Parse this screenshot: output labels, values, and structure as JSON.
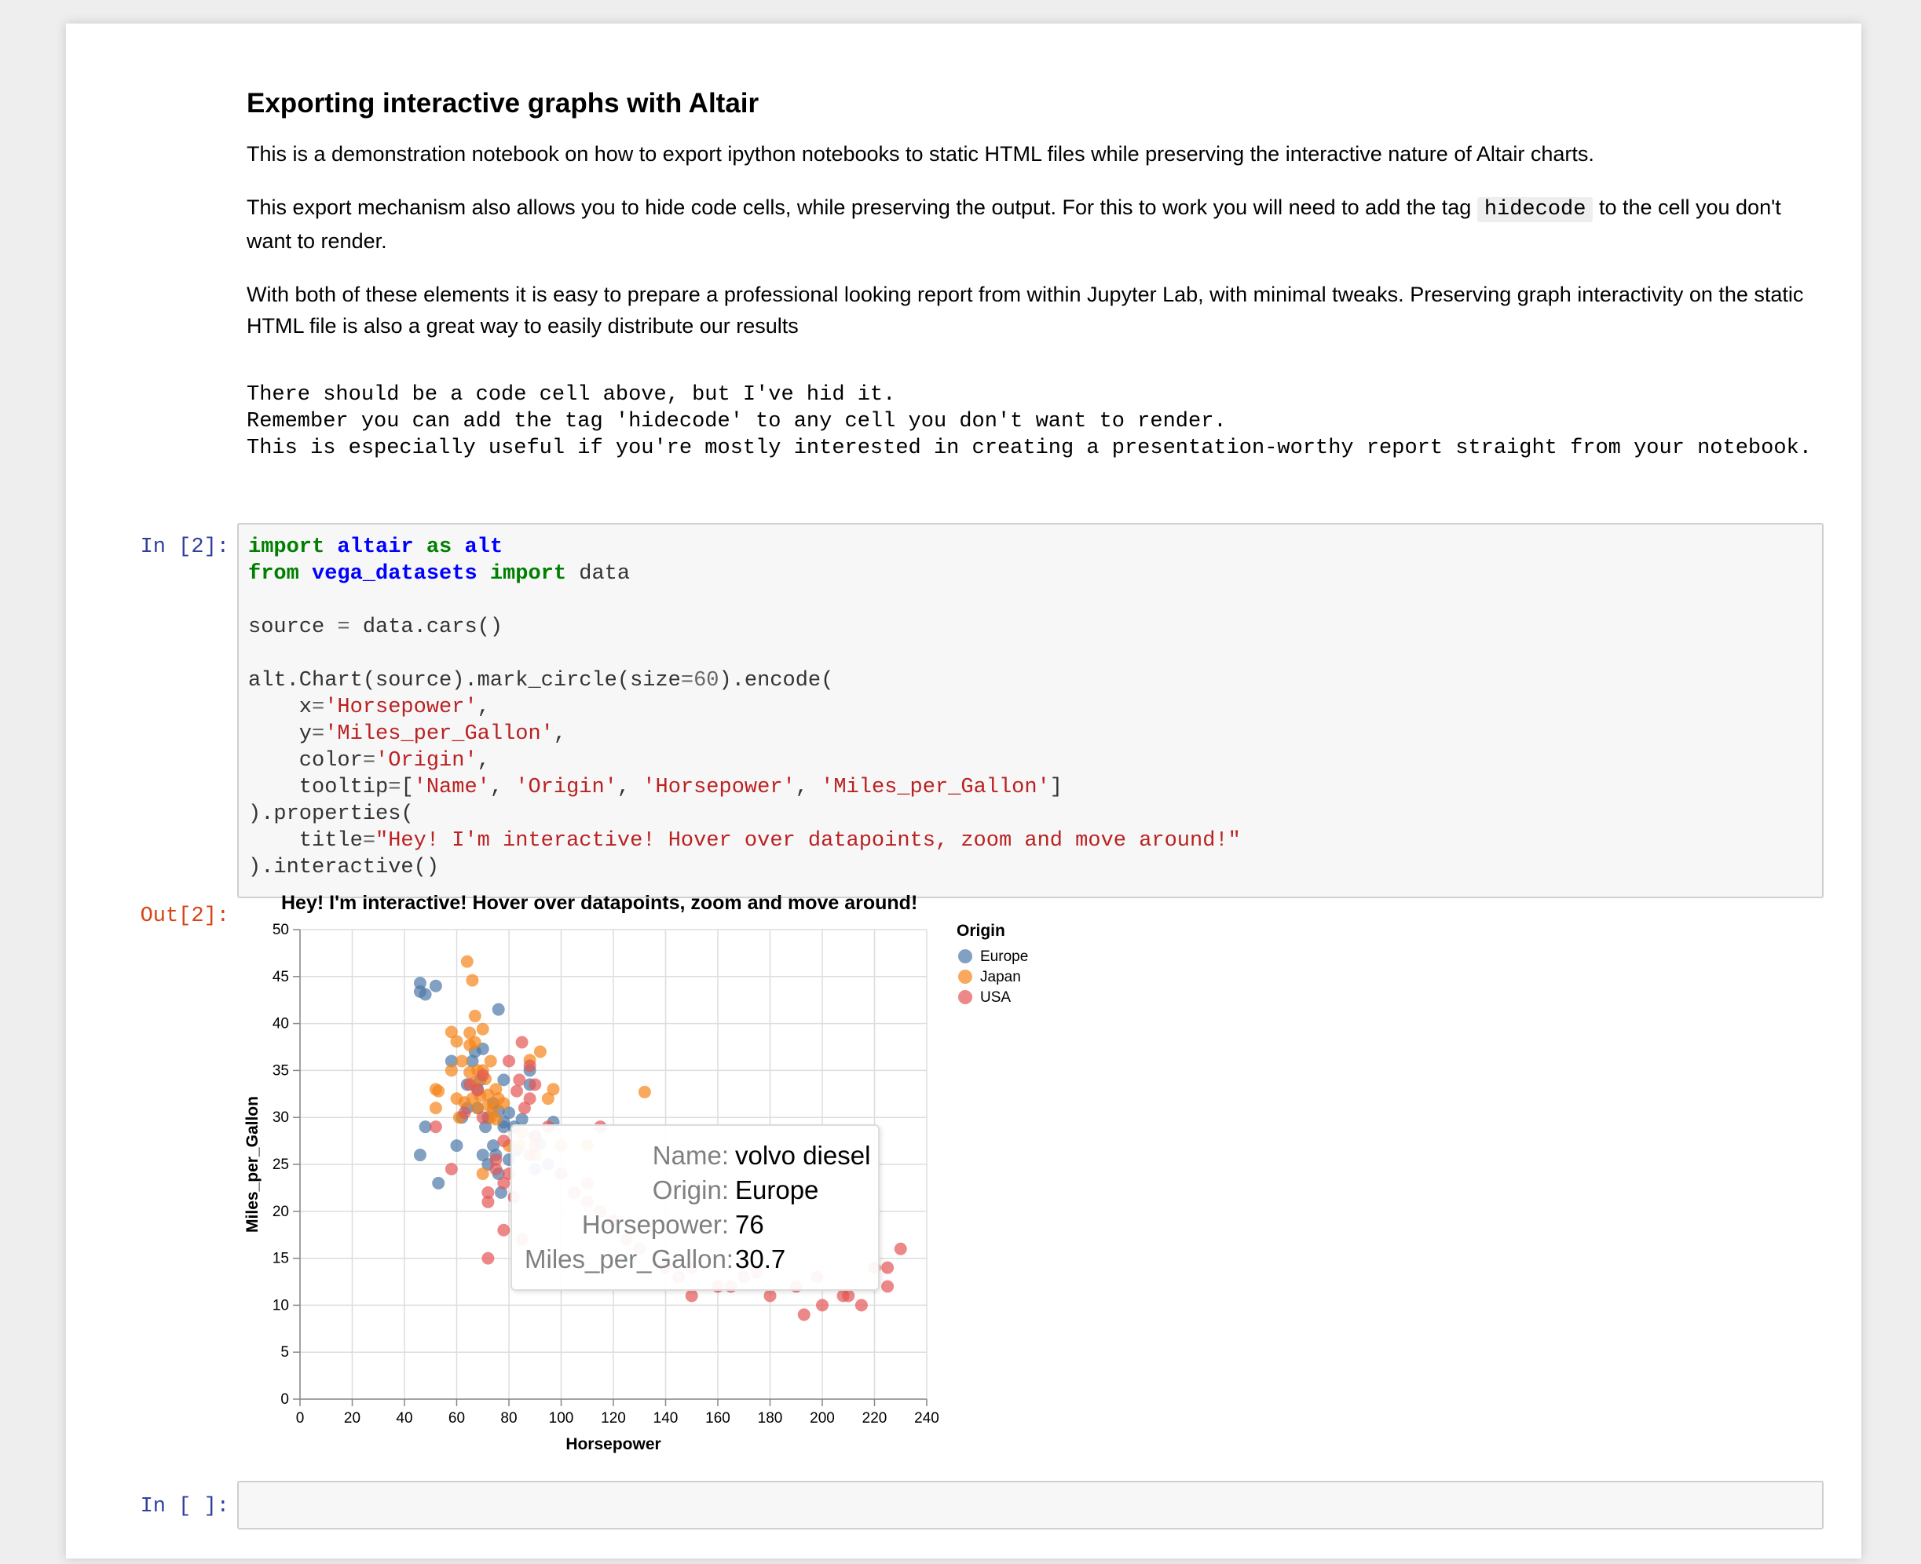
{
  "markdown": {
    "heading": "Exporting interactive graphs with Altair",
    "p1": "This is a demonstration notebook on how to export ipython notebooks to static HTML files while preserving the interactive nature of Altair charts.",
    "p2_before": "This export mechanism also allows you to hide code cells, while preserving the output. For this to work you will need to add the tag ",
    "p2_code": "hidecode",
    "p2_after": " to the cell you don't want to render.",
    "p3": "With both of these elements it is easy to prepare a professional looking report from within Jupyter Lab, with minimal tweaks. Preserving graph interactivity on the static HTML file is also a great way to easily distribute our results"
  },
  "stream_output": "There should be a code cell above, but I've hid it.\nRemember you can add the tag 'hidecode' to any cell you don't want to render.\nThis is especially useful if you're mostly interested in creating a presentation-worthy report straight from your notebook.",
  "cell1": {
    "in_prompt": "In [2]:",
    "out_prompt": "Out[2]:"
  },
  "cell2": {
    "in_prompt": "In [ ]:"
  },
  "colors": {
    "Europe": "#4c78a8",
    "Japan": "#f58518",
    "USA": "#e45756"
  },
  "chart_data": {
    "type": "scatter",
    "title": "Hey! I'm interactive! Hover over datapoints, zoom and move around!",
    "xlabel": "Horsepower",
    "ylabel": "Miles_per_Gallon",
    "xlim": [
      0,
      240
    ],
    "ylim": [
      0,
      50
    ],
    "xticks": [
      0,
      20,
      40,
      60,
      80,
      100,
      120,
      140,
      160,
      180,
      200,
      220,
      240
    ],
    "yticks": [
      0,
      5,
      10,
      15,
      20,
      25,
      30,
      35,
      40,
      45,
      50
    ],
    "grid": true,
    "legend": {
      "title": "Origin",
      "placement": "right",
      "entries": [
        "Europe",
        "Japan",
        "USA"
      ]
    },
    "series": [
      {
        "name": "Europe",
        "points": [
          [
            46,
            44.3
          ],
          [
            46,
            43.4
          ],
          [
            48,
            43.1
          ],
          [
            52,
            44.0
          ],
          [
            48,
            29.0
          ],
          [
            46,
            26.0
          ],
          [
            53,
            23.0
          ],
          [
            58,
            36.0
          ],
          [
            60,
            27.0
          ],
          [
            62,
            30.0
          ],
          [
            64,
            31.0
          ],
          [
            66,
            36.0
          ],
          [
            67,
            37.0
          ],
          [
            68,
            33.0
          ],
          [
            70,
            37.3
          ],
          [
            71,
            29.0
          ],
          [
            72,
            30.0
          ],
          [
            74,
            31.5
          ],
          [
            75,
            26.0
          ],
          [
            76,
            30.7
          ],
          [
            76,
            41.5
          ],
          [
            76,
            24.0
          ],
          [
            77,
            22.0
          ],
          [
            78,
            34.0
          ],
          [
            78,
            29.5
          ],
          [
            80,
            25.5
          ],
          [
            80,
            30.5
          ],
          [
            83,
            26.5
          ],
          [
            88,
            35.0
          ],
          [
            88,
            33.5
          ],
          [
            90,
            28.0
          ],
          [
            90,
            24.5
          ],
          [
            92,
            27.2
          ],
          [
            95,
            25.0
          ],
          [
            97,
            29.5
          ],
          [
            70,
            26.0
          ],
          [
            72,
            25.0
          ],
          [
            74,
            27.0
          ],
          [
            78,
            29.0
          ],
          [
            82,
            29.0
          ],
          [
            68,
            31.0
          ],
          [
            64,
            33.5
          ],
          [
            85,
            29.8
          ],
          [
            69,
            34.0
          ]
        ]
      },
      {
        "name": "Japan",
        "points": [
          [
            52,
            33.0
          ],
          [
            53,
            32.8
          ],
          [
            58,
            39.1
          ],
          [
            60,
            38.1
          ],
          [
            62,
            36.0
          ],
          [
            64,
            46.6
          ],
          [
            66,
            44.6
          ],
          [
            65,
            37.7
          ],
          [
            65,
            34.8
          ],
          [
            67,
            38.0
          ],
          [
            68,
            31.0
          ],
          [
            69,
            32.3
          ],
          [
            70,
            35.0
          ],
          [
            70,
            39.4
          ],
          [
            71,
            34.1
          ],
          [
            72,
            31.3
          ],
          [
            72,
            32.4
          ],
          [
            74,
            31.0
          ],
          [
            75,
            33.0
          ],
          [
            75,
            29.8
          ],
          [
            76,
            32.0
          ],
          [
            78,
            31.5
          ],
          [
            80,
            27.0
          ],
          [
            84,
            27.0
          ],
          [
            88,
            36.1
          ],
          [
            90,
            26.0
          ],
          [
            92,
            37.0
          ],
          [
            95,
            32.0
          ],
          [
            97,
            33.0
          ],
          [
            100,
            27.0
          ],
          [
            110,
            27.0
          ],
          [
            132,
            32.7
          ],
          [
            60,
            32.0
          ],
          [
            58,
            35.0
          ],
          [
            63,
            31.6
          ],
          [
            67,
            33.7
          ],
          [
            70,
            24.0
          ],
          [
            61,
            30.0
          ],
          [
            66,
            32.0
          ],
          [
            68,
            35.0
          ],
          [
            73,
            30.0
          ],
          [
            85,
            28.4
          ],
          [
            65,
            39.0
          ],
          [
            67,
            40.8
          ],
          [
            52,
            31.0
          ],
          [
            73,
            36.0
          ]
        ]
      },
      {
        "name": "USA",
        "points": [
          [
            52,
            29.0
          ],
          [
            58,
            24.5
          ],
          [
            63,
            30.5
          ],
          [
            65,
            33.5
          ],
          [
            68,
            32.9
          ],
          [
            70,
            34.5
          ],
          [
            70,
            30.0
          ],
          [
            72,
            22.0
          ],
          [
            72,
            21.0
          ],
          [
            72,
            15.0
          ],
          [
            75,
            24.5
          ],
          [
            78,
            23.0
          ],
          [
            78,
            18.0
          ],
          [
            80,
            36.0
          ],
          [
            84,
            34.0
          ],
          [
            85,
            38.0
          ],
          [
            86,
            31.0
          ],
          [
            88,
            32.0
          ],
          [
            90,
            33.5
          ],
          [
            90,
            28.0
          ],
          [
            80,
            24.0
          ],
          [
            82,
            21.5
          ],
          [
            85,
            17.0
          ],
          [
            88,
            26.0
          ],
          [
            90,
            27.0
          ],
          [
            95,
            29.0
          ],
          [
            100,
            24.0
          ],
          [
            105,
            22.0
          ],
          [
            110,
            23.0
          ],
          [
            110,
            21.0
          ],
          [
            115,
            29.0
          ],
          [
            115,
            20.0
          ],
          [
            120,
            19.0
          ],
          [
            125,
            17.0
          ],
          [
            130,
            16.0
          ],
          [
            140,
            14.0
          ],
          [
            145,
            13.0
          ],
          [
            150,
            11.0
          ],
          [
            150,
            14.0
          ],
          [
            160,
            12.0
          ],
          [
            165,
            12.0
          ],
          [
            170,
            13.0
          ],
          [
            175,
            13.5
          ],
          [
            180,
            11.0
          ],
          [
            190,
            12.0
          ],
          [
            193,
            9.0
          ],
          [
            198,
            13.0
          ],
          [
            200,
            10.0
          ],
          [
            208,
            11.0
          ],
          [
            210,
            11.0
          ],
          [
            215,
            10.0
          ],
          [
            220,
            14.0
          ],
          [
            225,
            12.0
          ],
          [
            225,
            14.0
          ],
          [
            230,
            16.0
          ],
          [
            88,
            35.5
          ],
          [
            83,
            32.8
          ],
          [
            78,
            27.5
          ],
          [
            75,
            25.5
          ]
        ]
      }
    ],
    "tooltip": {
      "rows": [
        {
          "key": "Name:",
          "value": "volvo diesel"
        },
        {
          "key": "Origin:",
          "value": "Europe"
        },
        {
          "key": "Horsepower:",
          "value": "76"
        },
        {
          "key": "Miles_per_Gallon:",
          "value": "30.7"
        }
      ]
    }
  }
}
